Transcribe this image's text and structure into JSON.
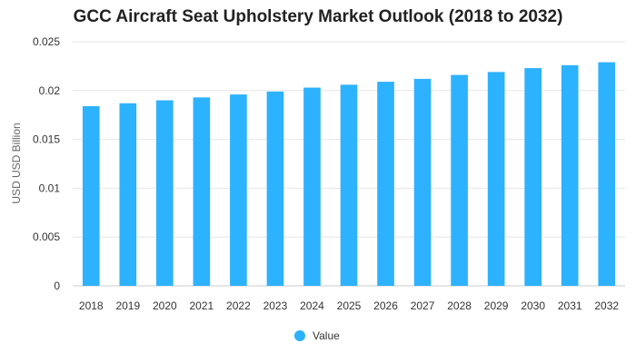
{
  "chart_data": {
    "type": "bar",
    "title": "GCC Aircraft Seat Upholstery Market Outlook (2018 to 2032)",
    "xlabel": "",
    "ylabel": "USD USD Billion",
    "categories": [
      "2018",
      "2019",
      "2020",
      "2021",
      "2022",
      "2023",
      "2024",
      "2025",
      "2026",
      "2027",
      "2028",
      "2029",
      "2030",
      "2031",
      "2032"
    ],
    "series": [
      {
        "name": "Value",
        "color": "#2db2ff",
        "values": [
          0.0184,
          0.0187,
          0.019,
          0.0193,
          0.0196,
          0.0199,
          0.0203,
          0.0206,
          0.0209,
          0.0212,
          0.0216,
          0.0219,
          0.0223,
          0.0226,
          0.0229
        ]
      }
    ],
    "ylim": [
      0,
      0.025
    ],
    "yticks": [
      "0",
      "0.005",
      "0.01",
      "0.015",
      "0.02",
      "0.025"
    ],
    "grid": true,
    "legend_position": "bottom-center"
  }
}
